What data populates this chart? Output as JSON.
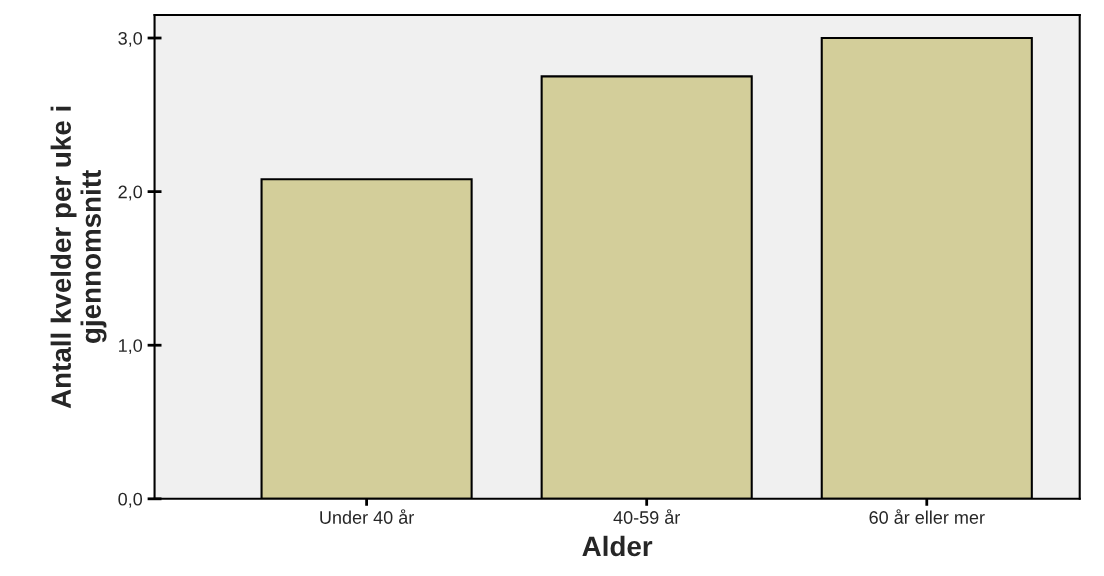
{
  "chart_data": {
    "type": "bar",
    "xlabel": "Alder",
    "ylabel": "Antall kvelder per uke i\ngjennomsnitt",
    "categories": [
      "Under 40 år",
      "40-59 år",
      "60 år eller mer"
    ],
    "values": [
      2.08,
      2.75,
      3.0
    ],
    "color": "#d3ce9a",
    "ylim": [
      0,
      3.15
    ],
    "yticks": [
      {
        "value": 0,
        "label": "0,0"
      },
      {
        "value": 1,
        "label": "1,0"
      },
      {
        "value": 2,
        "label": "2,0"
      },
      {
        "value": 3,
        "label": "3,0"
      }
    ],
    "grid": false
  }
}
